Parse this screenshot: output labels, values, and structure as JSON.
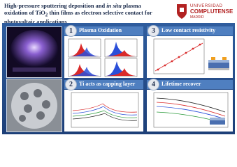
{
  "header": {
    "title": [
      "High-pressure sputtering deposition and ",
      "in situ",
      " plasma oxidation of TiO",
      "2",
      " thin films as electron selective contact for photovoltaic applications"
    ],
    "logo": {
      "line1": "UNIVERSIDAD",
      "line2": "COMPLUTENSE",
      "line3": "MADRID"
    }
  },
  "panels": [
    {
      "number": "1",
      "title": "Plasma Oxidation"
    },
    {
      "number": "3",
      "title": "Low contact resistivity"
    },
    {
      "number": "2",
      "title": "Ti acts as capping layer"
    },
    {
      "number": "4",
      "title": "Lifetime recover"
    }
  ]
}
